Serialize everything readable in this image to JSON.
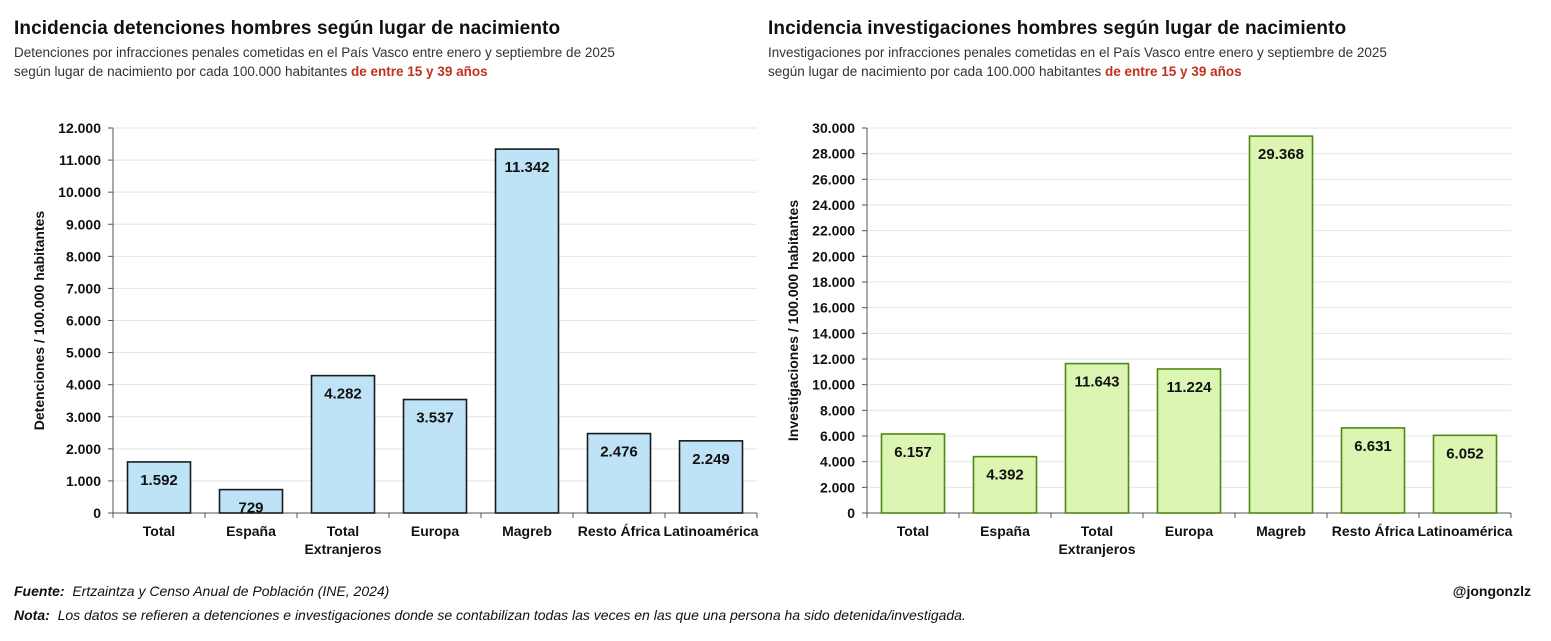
{
  "charts": [
    {
      "title": "Incidencia detenciones hombres según lugar de nacimiento",
      "subtitle_text": "Detenciones por infracciones penales cometidas en el País Vasco entre enero y septiembre de 2025 según lugar de nacimiento por cada 100.000 habitantes",
      "subtitle_highlight": "de entre 15 y 39 años"
    },
    {
      "title": "Incidencia investigaciones hombres según lugar de nacimiento",
      "subtitle_text": "Investigaciones por infracciones penales cometidas en el País Vasco entre enero y septiembre de 2025 según lugar de nacimiento por cada 100.000 habitantes",
      "subtitle_highlight": "de entre 15 y 39 años"
    }
  ],
  "chart_data": [
    {
      "type": "bar",
      "categories": [
        "Total",
        "España",
        "Total Extranjeros",
        "Europa",
        "Magreb",
        "Resto África",
        "Latinoamérica"
      ],
      "values": [
        1592,
        729,
        4282,
        3537,
        11342,
        2476,
        2249
      ],
      "value_labels": [
        "1.592",
        "729",
        "4.282",
        "3.537",
        "11.342",
        "2.476",
        "2.249"
      ],
      "ylabel": "Detenciones / 100.000 habitantes",
      "ylim": [
        0,
        12000
      ],
      "yticks": [
        0,
        1000,
        2000,
        3000,
        4000,
        5000,
        6000,
        7000,
        8000,
        9000,
        10000,
        11000,
        12000
      ],
      "ytick_labels": [
        "0",
        "1.000",
        "2.000",
        "3.000",
        "4.000",
        "5.000",
        "6.000",
        "7.000",
        "8.000",
        "9.000",
        "10.000",
        "11.000",
        "12.000"
      ],
      "grid": true,
      "bar_fill": "#bfe3f6",
      "bar_stroke": "#1a1a1a"
    },
    {
      "type": "bar",
      "categories": [
        "Total",
        "España",
        "Total Extranjeros",
        "Europa",
        "Magreb",
        "Resto África",
        "Latinoamérica"
      ],
      "values": [
        6157,
        4392,
        11643,
        11224,
        29368,
        6631,
        6052
      ],
      "value_labels": [
        "6.157",
        "4.392",
        "11.643",
        "11.224",
        "29.368",
        "6.631",
        "6.052"
      ],
      "ylabel": "Investigaciones / 100.000 habitantes",
      "ylim": [
        0,
        30000
      ],
      "yticks": [
        0,
        2000,
        4000,
        6000,
        8000,
        10000,
        12000,
        14000,
        16000,
        18000,
        20000,
        22000,
        24000,
        26000,
        28000,
        30000
      ],
      "ytick_labels": [
        "0",
        "2.000",
        "4.000",
        "6.000",
        "8.000",
        "10.000",
        "12.000",
        "14.000",
        "16.000",
        "18.000",
        "20.000",
        "22.000",
        "24.000",
        "26.000",
        "28.000",
        "30.000"
      ],
      "grid": true,
      "bar_fill": "#dcf5b2",
      "bar_stroke": "#4f8a10"
    }
  ],
  "footer": {
    "fuente_label": "Fuente:",
    "fuente_text": "Ertzaintza y Censo Anual de Población (INE, 2024)",
    "nota_label": "Nota:",
    "nota_text": "Los datos se refieren a detenciones e investigaciones donde se contabilizan todas las veces en las que una persona ha sido detenida/investigada.",
    "author": "@jongonzlz"
  }
}
